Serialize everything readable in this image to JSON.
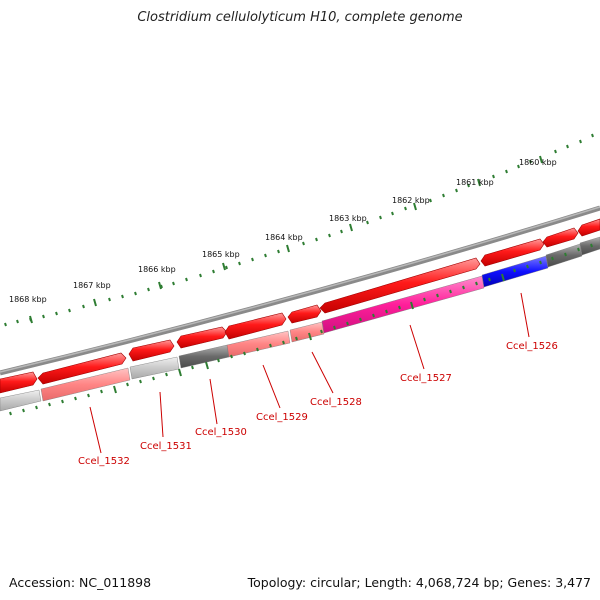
{
  "title": "Clostridium cellulolyticum H10, complete genome",
  "footer": {
    "accession": "Accession: NC_011898",
    "stats": "Topology: circular; Length: 4,068,724 bp; Genes: 3,477"
  },
  "scale_ticks": [
    "1868 kbp",
    "1867 kbp",
    "1866 kbp",
    "1865 kbp",
    "1864 kbp",
    "1863 kbp",
    "1862 kbp",
    "1861 kbp",
    "1860 kbp"
  ],
  "gene_labels": [
    "Ccel_1532",
    "Ccel_1531",
    "Ccel_1530",
    "Ccel_1529",
    "Ccel_1528",
    "Ccel_1527",
    "Ccel_1526"
  ],
  "colors": {
    "forward_strand": "#ff0000",
    "gene_pink": "#ff8080",
    "gene_magenta": "#ff1493",
    "gene_blue": "#0000ee",
    "gene_gray": "#666666",
    "gene_lightgray": "#c0c0c0",
    "backbone": "#777777",
    "ticks": "#2e7d32",
    "label_text": "#cc0000"
  }
}
